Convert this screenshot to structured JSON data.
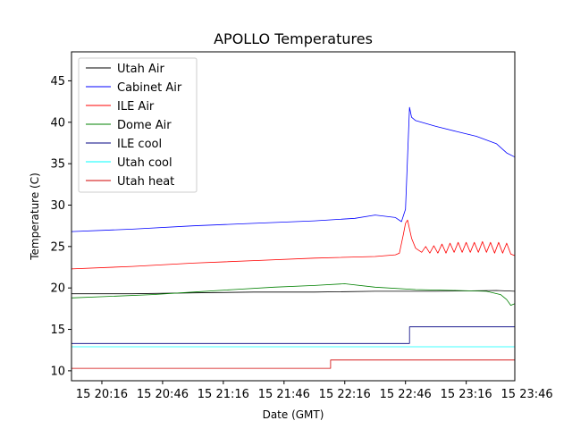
{
  "chart_data": {
    "type": "line",
    "title": "APOLLO Temperatures",
    "xlabel": "Date (GMT)",
    "ylabel": "Temperature (C)",
    "xlim": [
      0,
      219
    ],
    "ylim": [
      8.8,
      48.5
    ],
    "x_unit": "minutes after 15 20:01",
    "x_ticks": [
      {
        "x": 15,
        "label": "15 20:16"
      },
      {
        "x": 45,
        "label": "15 20:46"
      },
      {
        "x": 75,
        "label": "15 21:16"
      },
      {
        "x": 105,
        "label": "15 21:46"
      },
      {
        "x": 135,
        "label": "15 22:16"
      },
      {
        "x": 165,
        "label": "15 22:46"
      },
      {
        "x": 195,
        "label": "15 23:16"
      },
      {
        "x": 225,
        "label": "15 23:46"
      }
    ],
    "y_ticks": [
      {
        "y": 10,
        "label": "10"
      },
      {
        "y": 15,
        "label": "15"
      },
      {
        "y": 20,
        "label": "20"
      },
      {
        "y": 25,
        "label": "25"
      },
      {
        "y": 30,
        "label": "30"
      },
      {
        "y": 35,
        "label": "35"
      },
      {
        "y": 40,
        "label": "40"
      },
      {
        "y": 45,
        "label": "45"
      }
    ],
    "legend_position": "top-left",
    "grid": false,
    "series": [
      {
        "name": "Utah Air",
        "color": "#000000",
        "x": [
          0,
          30,
          60,
          90,
          120,
          150,
          180,
          210,
          219
        ],
        "y": [
          19.3,
          19.3,
          19.4,
          19.5,
          19.5,
          19.6,
          19.6,
          19.7,
          19.6
        ]
      },
      {
        "name": "Cabinet Air",
        "color": "#0000ff",
        "x": [
          0,
          30,
          60,
          90,
          120,
          140,
          150,
          160,
          163,
          165,
          167,
          168,
          170,
          180,
          190,
          200,
          210,
          215,
          219
        ],
        "y": [
          26.8,
          27.1,
          27.5,
          27.8,
          28.1,
          28.4,
          28.8,
          28.5,
          28.0,
          29.5,
          41.8,
          40.6,
          40.2,
          39.5,
          38.9,
          38.3,
          37.4,
          36.3,
          35.8
        ]
      },
      {
        "name": "ILE Air",
        "color": "#ff0000",
        "x": [
          0,
          30,
          60,
          90,
          120,
          150,
          160,
          162,
          164,
          165,
          166,
          168,
          170,
          173,
          175,
          177,
          179,
          181,
          183,
          185,
          187,
          189,
          191,
          193,
          195,
          197,
          199,
          201,
          203,
          205,
          207,
          209,
          211,
          213,
          215,
          217,
          219
        ],
        "y": [
          22.3,
          22.6,
          23.0,
          23.3,
          23.6,
          23.8,
          24.0,
          24.2,
          26.5,
          27.8,
          28.2,
          26.0,
          24.8,
          24.3,
          25.0,
          24.2,
          25.1,
          24.2,
          25.3,
          24.2,
          25.4,
          24.3,
          25.5,
          24.3,
          25.5,
          24.3,
          25.5,
          24.3,
          25.6,
          24.3,
          25.5,
          24.2,
          25.5,
          24.2,
          25.4,
          24.1,
          23.9
        ]
      },
      {
        "name": "Dome Air",
        "color": "#008000",
        "x": [
          0,
          20,
          40,
          60,
          80,
          100,
          120,
          135,
          150,
          170,
          190,
          205,
          212,
          215,
          217,
          219
        ],
        "y": [
          18.8,
          19.0,
          19.2,
          19.5,
          19.8,
          20.1,
          20.3,
          20.5,
          20.1,
          19.8,
          19.7,
          19.6,
          19.2,
          18.6,
          17.9,
          18.1
        ]
      },
      {
        "name": "ILE cool",
        "color": "#000080",
        "x": [
          0,
          167,
          167,
          219
        ],
        "y": [
          13.3,
          13.3,
          15.3,
          15.3
        ]
      },
      {
        "name": "Utah cool",
        "color": "#00ffff",
        "x": [
          0,
          219
        ],
        "y": [
          12.9,
          12.9
        ]
      },
      {
        "name": "Utah heat",
        "color": "#d00000",
        "x": [
          0,
          128,
          128,
          219
        ],
        "y": [
          10.3,
          10.3,
          11.3,
          11.3
        ]
      }
    ]
  }
}
